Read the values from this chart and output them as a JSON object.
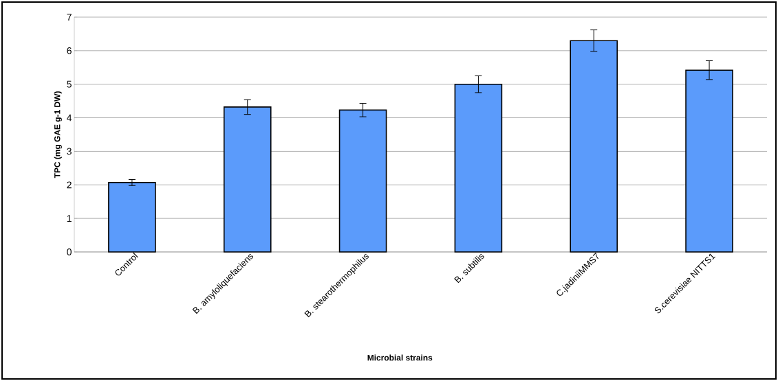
{
  "chart_data": {
    "type": "bar",
    "xlabel": "Microbial strains",
    "ylabel": "TPC (mg GAE g-1 DW)",
    "categories": [
      "Control",
      "B. amyloliquefaciens",
      "B. stearothermophilus",
      "B. subtilis",
      "C.jadiniiMMS7",
      "S.cerevisiae NITTS1"
    ],
    "values": [
      2.07,
      4.32,
      4.23,
      5.0,
      6.3,
      5.42
    ],
    "errors": [
      0.09,
      0.22,
      0.2,
      0.25,
      0.32,
      0.28
    ],
    "color": "#5b9bfb",
    "ylim": [
      0,
      7
    ],
    "yticks": [
      0,
      1,
      2,
      3,
      4,
      5,
      6,
      7
    ],
    "grid": "y"
  }
}
